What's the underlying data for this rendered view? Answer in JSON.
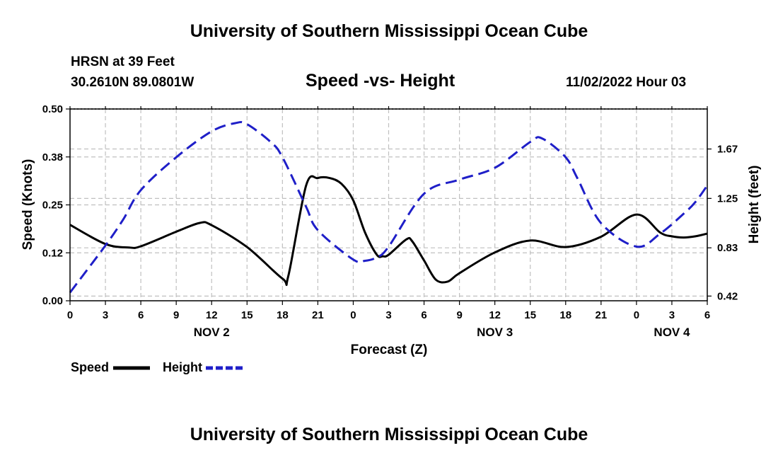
{
  "header": {
    "title": "University of Southern Mississippi Ocean Cube",
    "station_name": "HRSN at 39 Feet",
    "station_coords": "30.2610N  89.0801W",
    "chart_title": "Speed -vs- Height",
    "issued": "11/02/2022 Hour 03"
  },
  "footer": {
    "title": "University of Southern Mississippi Ocean Cube"
  },
  "legend": {
    "speed_label": "Speed",
    "height_label": "Height"
  },
  "colors": {
    "speed": "#000000",
    "height": "#1f1fc8",
    "grid": "#c0c0c0"
  },
  "chart_data": {
    "type": "line",
    "title": "Speed -vs- Height",
    "xlabel": "Forecast (Z)",
    "ylabel": "Speed (Knots)",
    "y2label": "Height (feet)",
    "xlim": [
      0,
      54
    ],
    "x_ticks": [
      0,
      3,
      6,
      9,
      12,
      15,
      18,
      21,
      24,
      27,
      30,
      33,
      36,
      39,
      42,
      45,
      48,
      51,
      54
    ],
    "x_tick_labels": [
      "0",
      "3",
      "6",
      "9",
      "12",
      "15",
      "18",
      "21",
      "0",
      "3",
      "6",
      "9",
      "12",
      "15",
      "18",
      "21",
      "0",
      "3",
      "6"
    ],
    "date_labels": [
      {
        "x": 12,
        "label": "NOV 2"
      },
      {
        "x": 36,
        "label": "NOV 3"
      },
      {
        "x": 51,
        "label": "NOV 4"
      }
    ],
    "ylim": [
      0,
      0.5
    ],
    "y_ticks": [
      0,
      0.125,
      0.25,
      0.375,
      0.5
    ],
    "y_tick_labels": [
      "0.00",
      "0.12",
      "0.25",
      "0.38",
      "0.50"
    ],
    "y2lim": [
      0.38,
      2.01
    ],
    "y2_ticks": [
      0.42,
      0.83,
      1.25,
      1.67
    ],
    "y2_tick_labels": [
      "0.42",
      "0.83",
      "1.25",
      "1.67"
    ],
    "series": [
      {
        "name": "Speed",
        "axis": "left",
        "x": [
          0,
          3,
          5,
          6,
          9,
          11,
          12,
          15,
          18,
          18.5,
          20,
          21,
          22,
          23,
          24,
          25,
          26,
          26.5,
          27,
          28.5,
          29,
          30,
          31,
          32,
          33,
          36,
          39,
          42,
          45,
          48,
          50,
          51,
          52,
          53,
          54
        ],
        "values": [
          0.198,
          0.148,
          0.139,
          0.142,
          0.18,
          0.203,
          0.197,
          0.14,
          0.058,
          0.065,
          0.3,
          0.32,
          0.32,
          0.305,
          0.262,
          0.178,
          0.12,
          0.116,
          0.12,
          0.16,
          0.155,
          0.105,
          0.055,
          0.05,
          0.072,
          0.126,
          0.157,
          0.14,
          0.167,
          0.225,
          0.178,
          0.168,
          0.165,
          0.168,
          0.175
        ]
      },
      {
        "name": "Height",
        "axis": "right",
        "x": [
          0,
          3,
          4.5,
          6,
          9,
          12,
          14,
          15,
          17,
          18,
          20,
          21,
          24,
          25,
          26,
          27,
          30,
          33,
          36,
          39,
          40,
          42,
          43,
          45,
          48,
          50,
          52,
          53,
          54
        ],
        "values": [
          0.45,
          0.85,
          1.07,
          1.32,
          1.6,
          1.82,
          1.89,
          1.88,
          1.73,
          1.6,
          1.18,
          0.98,
          0.73,
          0.72,
          0.75,
          0.84,
          1.29,
          1.41,
          1.51,
          1.73,
          1.76,
          1.6,
          1.42,
          1.04,
          0.84,
          0.95,
          1.12,
          1.22,
          1.36
        ]
      }
    ]
  }
}
